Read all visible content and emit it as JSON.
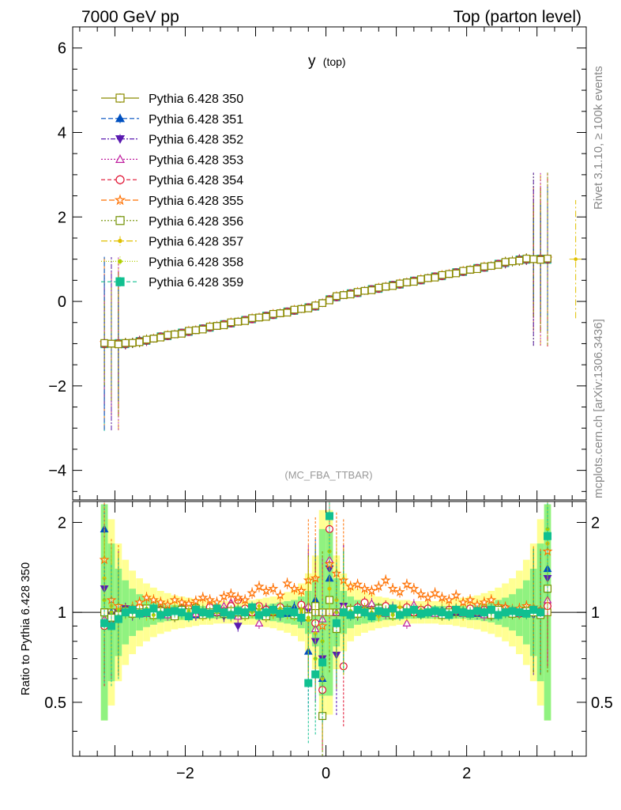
{
  "header": {
    "left": "7000 GeV pp",
    "right": "Top (parton level)"
  },
  "side_labels": {
    "rivet": "Rivet 3.1.10, ≥ 100k events",
    "mcplots": "mcplots.cern.ch [arXiv:1306.3436]"
  },
  "chart_data": [
    {
      "type": "line",
      "title": "y",
      "title_sub": "(top)",
      "watermark": "(MC_FBA_TTBAR)",
      "xlim": [
        -3.6,
        3.7
      ],
      "ylim": [
        -4.7,
        6.5
      ],
      "yticks": [
        "−4",
        "−2",
        "0",
        "2",
        "4",
        "6"
      ],
      "ytick_values": [
        -4,
        -2,
        0,
        2,
        4,
        6
      ],
      "x": [
        -3.15,
        -3.05,
        -2.95,
        -2.85,
        -2.75,
        -2.65,
        -2.55,
        -2.45,
        -2.35,
        -2.25,
        -2.15,
        -2.05,
        -1.95,
        -1.85,
        -1.75,
        -1.65,
        -1.55,
        -1.45,
        -1.35,
        -1.25,
        -1.15,
        -1.05,
        -0.95,
        -0.85,
        -0.75,
        -0.65,
        -0.55,
        -0.45,
        -0.35,
        -0.25,
        -0.15,
        -0.05,
        0.05,
        0.15,
        0.25,
        0.35,
        0.45,
        0.55,
        0.65,
        0.75,
        0.85,
        0.95,
        1.05,
        1.15,
        1.25,
        1.35,
        1.45,
        1.55,
        1.65,
        1.75,
        1.85,
        1.95,
        2.05,
        2.15,
        2.25,
        2.35,
        2.45,
        2.55,
        2.65,
        2.75,
        2.85,
        2.95,
        3.05,
        3.15
      ],
      "y": [
        -1.0,
        -1.0,
        -1.0,
        -1.0,
        -0.98,
        -0.95,
        -0.92,
        -0.88,
        -0.84,
        -0.81,
        -0.78,
        -0.75,
        -0.71,
        -0.68,
        -0.65,
        -0.61,
        -0.58,
        -0.55,
        -0.51,
        -0.48,
        -0.45,
        -0.41,
        -0.38,
        -0.35,
        -0.31,
        -0.28,
        -0.25,
        -0.21,
        -0.18,
        -0.15,
        -0.11,
        -0.04,
        0.04,
        0.11,
        0.15,
        0.18,
        0.21,
        0.25,
        0.28,
        0.31,
        0.35,
        0.38,
        0.41,
        0.45,
        0.48,
        0.51,
        0.55,
        0.58,
        0.61,
        0.65,
        0.68,
        0.71,
        0.75,
        0.78,
        0.81,
        0.84,
        0.88,
        0.92,
        0.95,
        0.98,
        1.0,
        1.0,
        1.0,
        1.0
      ],
      "legend_position": "top-left",
      "series": [
        {
          "name": "Pythia 6.428 350",
          "color": "#8b8b00",
          "marker": "open-square",
          "dash": ""
        },
        {
          "name": "Pythia 6.428 351",
          "color": "#0050c0",
          "marker": "triangle-up",
          "dash": "6,3"
        },
        {
          "name": "Pythia 6.428 352",
          "color": "#5a1ab0",
          "marker": "triangle-down",
          "dash": "6,2,2,2"
        },
        {
          "name": "Pythia 6.428 353",
          "color": "#c020a0",
          "marker": "open-triangle-up",
          "dash": "2,2"
        },
        {
          "name": "Pythia 6.428 354",
          "color": "#e01030",
          "marker": "open-circle",
          "dash": "5,3"
        },
        {
          "name": "Pythia 6.428 355",
          "color": "#ff7000",
          "marker": "open-star",
          "dash": "7,3"
        },
        {
          "name": "Pythia 6.428 356",
          "color": "#709000",
          "marker": "open-square",
          "dash": "2,2"
        },
        {
          "name": "Pythia 6.428 357",
          "color": "#e0c000",
          "marker": "dot",
          "dash": "8,3,2,3"
        },
        {
          "name": "Pythia 6.428 358",
          "color": "#b0d000",
          "marker": "dot",
          "dash": "1,2"
        },
        {
          "name": "Pythia 6.428 359",
          "color": "#10c090",
          "marker": "square",
          "dash": "5,3"
        }
      ]
    },
    {
      "type": "line",
      "ylabel": "Ratio to Pythia 6.428 350",
      "xlim": [
        -3.6,
        3.7
      ],
      "ylim": [
        0.33,
        2.35
      ],
      "yscale": "log",
      "yticks": [
        "0.5",
        "1",
        "2"
      ],
      "ytick_values": [
        0.5,
        1,
        2
      ],
      "xticks": [
        "−2",
        "0",
        "2"
      ],
      "xtick_values": [
        -2,
        0,
        2
      ],
      "reference": 1,
      "band_yellow": [
        2.3,
        2.05,
        1.7,
        1.5,
        1.38,
        1.3,
        1.25,
        1.21,
        1.18,
        1.16,
        1.14,
        1.13,
        1.12,
        1.11,
        1.1,
        1.1,
        1.09,
        1.09,
        1.09,
        1.09,
        1.1,
        1.1,
        1.11,
        1.12,
        1.13,
        1.15,
        1.17,
        1.2,
        1.25,
        1.35,
        1.55,
        2.2,
        2.2,
        1.55,
        1.35,
        1.25,
        1.2,
        1.17,
        1.15,
        1.13,
        1.12,
        1.11,
        1.1,
        1.1,
        1.09,
        1.09,
        1.09,
        1.09,
        1.1,
        1.1,
        1.11,
        1.12,
        1.13,
        1.14,
        1.16,
        1.18,
        1.21,
        1.25,
        1.3,
        1.38,
        1.5,
        1.7,
        2.05,
        2.3
      ],
      "band_green": [
        2.3,
        1.7,
        1.4,
        1.28,
        1.2,
        1.15,
        1.12,
        1.1,
        1.08,
        1.07,
        1.06,
        1.06,
        1.05,
        1.05,
        1.05,
        1.05,
        1.05,
        1.05,
        1.05,
        1.05,
        1.05,
        1.05,
        1.06,
        1.06,
        1.07,
        1.08,
        1.09,
        1.1,
        1.13,
        1.18,
        1.3,
        1.9,
        1.9,
        1.3,
        1.18,
        1.13,
        1.1,
        1.09,
        1.08,
        1.07,
        1.06,
        1.06,
        1.05,
        1.05,
        1.05,
        1.05,
        1.05,
        1.05,
        1.05,
        1.05,
        1.05,
        1.05,
        1.06,
        1.06,
        1.07,
        1.08,
        1.1,
        1.12,
        1.15,
        1.2,
        1.28,
        1.4,
        1.7,
        2.3
      ],
      "ratios": [
        [
          1,
          1,
          1,
          1,
          1,
          1,
          1,
          1,
          1,
          1,
          1,
          1,
          1,
          1,
          1,
          1,
          1,
          1,
          1,
          1,
          1,
          1,
          1,
          1,
          1,
          1,
          1,
          1,
          1,
          1,
          1,
          1,
          1,
          1,
          1,
          1,
          1,
          1,
          1,
          1,
          1,
          1,
          1,
          1,
          1,
          1,
          1,
          1,
          1,
          1,
          1,
          1,
          1,
          1,
          1,
          1,
          1,
          1,
          1,
          1,
          1,
          1,
          1,
          1
        ],
        [
          1.9,
          1.0,
          0.97,
          1.02,
          1.0,
          1.01,
          0.99,
          1.0,
          1.01,
          1.0,
          0.99,
          1.02,
          1.0,
          0.98,
          1.01,
          1.0,
          1.02,
          0.99,
          1.0,
          1.01,
          0.98,
          1.03,
          1.0,
          0.97,
          1.02,
          1.01,
          0.99,
          1.04,
          0.96,
          0.74,
          1.1,
          0.6,
          1.3,
          0.9,
          1.05,
          0.98,
          1.02,
          1.0,
          0.99,
          1.03,
          1.0,
          0.98,
          1.02,
          1.01,
          1.0,
          0.99,
          1.01,
          1.0,
          1.02,
          0.99,
          1.0,
          1.01,
          1.0,
          0.99,
          1.01,
          1.0,
          1.0,
          1.01,
          1.0,
          0.99,
          1.0,
          1.02,
          1.0,
          1.4
        ],
        [
          1.2,
          0.98,
          1.0,
          1.03,
          0.98,
          1.0,
          1.02,
          0.99,
          1.0,
          1.01,
          0.97,
          1.0,
          1.02,
          0.98,
          1.0,
          1.01,
          0.99,
          0.97,
          1.02,
          0.9,
          1.0,
          1.03,
          0.98,
          1.0,
          1.02,
          0.98,
          1.01,
          0.99,
          0.95,
          1.02,
          0.8,
          0.7,
          1.4,
          0.72,
          1.05,
          1.0,
          0.98,
          1.02,
          1.0,
          0.99,
          1.0,
          1.01,
          0.98,
          1.02,
          1.0,
          0.99,
          1.01,
          1.0,
          0.98,
          1.0,
          1.02,
          1.0,
          0.99,
          1.01,
          1.0,
          0.98,
          1.0,
          1.01,
          1.0,
          0.99,
          1.0,
          0.98,
          1.0,
          1.3
        ],
        [
          0.95,
          0.97,
          1.0,
          1.02,
          1.0,
          1.03,
          0.99,
          1.01,
          1.0,
          0.98,
          1.01,
          1.02,
          1.0,
          0.99,
          1.01,
          1.03,
          1.0,
          1.05,
          1.08,
          0.97,
          1.02,
          1.0,
          0.92,
          1.03,
          1.0,
          0.99,
          1.02,
          1.01,
          0.97,
          1.05,
          0.88,
          0.95,
          1.5,
          1.0,
          1.05,
          1.02,
          1.0,
          1.03,
          1.07,
          1.01,
          0.99,
          1.04,
          1.02,
          0.92,
          1.06,
          1.0,
          1.02,
          0.99,
          1.01,
          1.0,
          1.02,
          0.99,
          1.01,
          1.0,
          0.98,
          1.02,
          1.0,
          1.01,
          0.99,
          1.0,
          1.02,
          1.0,
          0.99,
          1.1
        ],
        [
          0.9,
          0.95,
          0.98,
          1.0,
          1.02,
          1.04,
          1.03,
          1.0,
          1.02,
          1.01,
          0.99,
          1.03,
          1.05,
          1.02,
          1.0,
          1.04,
          1.03,
          1.01,
          1.05,
          1.1,
          1.03,
          1.0,
          1.05,
          1.02,
          1.0,
          1.04,
          1.01,
          0.99,
          1.06,
          0.96,
          0.92,
          0.55,
          1.9,
          0.9,
          0.66,
          1.02,
          1.04,
          1.08,
          1.01,
          1.03,
          1.05,
          1.0,
          1.02,
          1.04,
          1.0,
          1.02,
          1.03,
          1.01,
          1.0,
          1.02,
          1.01,
          1.0,
          1.03,
          1.0,
          1.02,
          1.0,
          1.01,
          1.03,
          1.0,
          0.99,
          1.0,
          1.02,
          1.01,
          1.05
        ],
        [
          1.5,
          1.1,
          1.05,
          1.02,
          1.04,
          1.08,
          1.12,
          1.1,
          1.08,
          1.06,
          1.1,
          1.08,
          1.07,
          1.09,
          1.12,
          1.1,
          1.08,
          1.13,
          1.15,
          1.12,
          1.1,
          1.16,
          1.22,
          1.18,
          1.2,
          1.14,
          1.25,
          1.2,
          1.18,
          1.28,
          1.3,
          0.9,
          1.45,
          1.35,
          1.28,
          1.22,
          1.24,
          1.2,
          1.18,
          1.22,
          1.28,
          1.2,
          1.17,
          1.24,
          1.2,
          1.15,
          1.12,
          1.16,
          1.12,
          1.1,
          1.14,
          1.08,
          1.1,
          1.06,
          1.08,
          1.1,
          1.05,
          1.04,
          1.02,
          1.03,
          1.05,
          1.04,
          1.02,
          1.6
        ],
        [
          1.0,
          0.96,
          0.98,
          1.01,
          0.99,
          1.0,
          1.03,
          0.98,
          1.01,
          1.0,
          0.97,
          1.02,
          1.0,
          1.03,
          0.98,
          1.0,
          1.02,
          0.99,
          1.01,
          1.0,
          0.98,
          1.03,
          1.0,
          0.97,
          1.01,
          1.0,
          1.02,
          0.98,
          1.0,
          0.97,
          1.05,
          0.45,
          1.1,
          0.88,
          1.0,
          1.02,
          0.99,
          1.01,
          1.0,
          1.03,
          1.0,
          0.98,
          1.01,
          1.0,
          1.02,
          0.99,
          1.0,
          1.01,
          0.98,
          1.0,
          1.02,
          1.0,
          0.99,
          1.01,
          1.0,
          0.98,
          1.02,
          1.0,
          0.99,
          1.0,
          1.01,
          1.0,
          0.98,
          1.2
        ],
        [
          1.3,
          1.05,
          0.97,
          1.0,
          1.03,
          1.0,
          0.98,
          1.02,
          1.0,
          1.01,
          1.04,
          0.99,
          1.0,
          1.02,
          0.98,
          1.0,
          1.03,
          1.01,
          0.97,
          1.0,
          1.02,
          1.0,
          1.05,
          0.98,
          1.0,
          1.03,
          0.99,
          1.01,
          1.0,
          0.94,
          0.85,
          0.6,
          1.2,
          1.1,
          1.02,
          0.98,
          1.0,
          1.03,
          1.0,
          0.97,
          1.01,
          1.0,
          1.04,
          0.98,
          1.0,
          1.02,
          1.0,
          0.99,
          1.01,
          1.0,
          1.03,
          0.98,
          1.0,
          1.01,
          1.0,
          1.02,
          0.99,
          1.0,
          1.01,
          0.99,
          1.0,
          1.03,
          1.0,
          1.7
        ],
        [
          1.1,
          1.0,
          1.02,
          0.99,
          1.0,
          1.01,
          1.03,
          0.98,
          1.0,
          1.02,
          1.0,
          0.99,
          1.01,
          1.0,
          1.02,
          0.98,
          1.0,
          1.01,
          1.0,
          1.03,
          0.98,
          1.0,
          1.02,
          1.0,
          0.99,
          1.01,
          1.0,
          0.98,
          1.02,
          0.96,
          0.7,
          0.8,
          1.6,
          1.0,
          0.98,
          1.01,
          1.0,
          1.02,
          0.99,
          1.0,
          1.01,
          0.98,
          1.0,
          1.02,
          1.0,
          0.99,
          1.01,
          1.0,
          1.02,
          0.98,
          1.0,
          1.01,
          0.99,
          1.0,
          1.02,
          1.0,
          0.99,
          1.0,
          1.01,
          1.0,
          0.99,
          1.02,
          1.0,
          1.9
        ],
        [
          0.92,
          0.9,
          0.95,
          1.0,
          1.02,
          0.99,
          1.0,
          1.03,
          0.98,
          1.0,
          1.01,
          1.0,
          0.97,
          1.02,
          1.0,
          0.99,
          1.03,
          1.0,
          0.98,
          1.01,
          1.0,
          1.04,
          0.98,
          1.0,
          1.02,
          0.99,
          1.01,
          1.0,
          0.96,
          0.58,
          0.62,
          0.68,
          2.1,
          0.92,
          1.0,
          0.98,
          1.02,
          1.0,
          0.97,
          1.01,
          1.0,
          1.03,
          0.98,
          1.0,
          1.02,
          0.99,
          1.0,
          1.01,
          1.0,
          0.98,
          1.02,
          1.0,
          0.99,
          1.01,
          1.0,
          1.02,
          0.98,
          1.0,
          1.01,
          1.0,
          0.99,
          1.02,
          1.0,
          1.8
        ]
      ]
    }
  ]
}
